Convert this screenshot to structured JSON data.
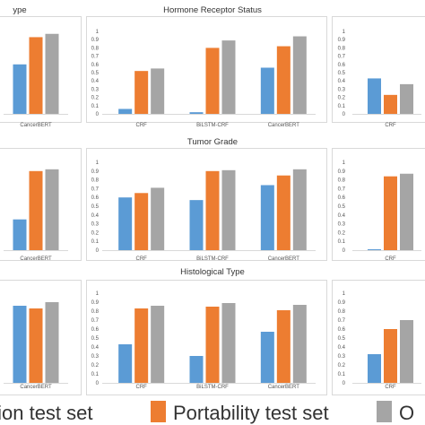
{
  "colors": {
    "series": [
      "#5b9bd5",
      "#ed7d31",
      "#a5a5a5"
    ],
    "frame": "#d9d9d9",
    "grid": "#d9d9d9"
  },
  "legend": {
    "entries": [
      {
        "label": "tion test set",
        "color": "#5b9bd5"
      },
      {
        "label": "Portability test set",
        "color": "#ed7d31"
      },
      {
        "label": "O",
        "color": "#a5a5a5"
      }
    ]
  },
  "chart_data": [
    {
      "type": "bar",
      "title": "ype",
      "categories": [
        "CancerBERT"
      ],
      "series": [
        {
          "values": [
            0.6
          ]
        },
        {
          "values": [
            0.93
          ]
        },
        {
          "values": [
            0.97
          ]
        }
      ]
    },
    {
      "type": "bar",
      "title": "Hormone Receptor Status",
      "categories": [
        "CRF",
        "BiLSTM-CRF",
        "CancerBERT"
      ],
      "ylim": [
        0,
        1
      ],
      "yticks": [
        "0",
        "0.1",
        "0.2",
        "0.3",
        "0.4",
        "0.5",
        "0.6",
        "0.7",
        "0.8",
        "0.9",
        "1"
      ],
      "series": [
        {
          "values": [
            0.06,
            0.02,
            0.56
          ]
        },
        {
          "values": [
            0.52,
            0.8,
            0.82
          ]
        },
        {
          "values": [
            0.55,
            0.89,
            0.94
          ]
        }
      ]
    },
    {
      "type": "bar",
      "title": "",
      "categories": [
        "CRF"
      ],
      "ylim": [
        0,
        1
      ],
      "yticks": [
        "0",
        "0.1",
        "0.2",
        "0.3",
        "0.4",
        "0.5",
        "0.6",
        "0.7",
        "0.8",
        "0.9",
        "1"
      ],
      "series": [
        {
          "values": [
            0.43
          ]
        },
        {
          "values": [
            0.23
          ]
        },
        {
          "values": [
            0.36
          ]
        }
      ]
    },
    {
      "type": "bar",
      "title": "",
      "categories": [
        "CancerBERT"
      ],
      "series": [
        {
          "values": [
            0.35
          ]
        },
        {
          "values": [
            0.9
          ]
        },
        {
          "values": [
            0.92
          ]
        }
      ]
    },
    {
      "type": "bar",
      "title": "Tumor Grade",
      "categories": [
        "CRF",
        "BiLSTM-CRF",
        "CancerBERT"
      ],
      "ylim": [
        0,
        1
      ],
      "yticks": [
        "0",
        "0.1",
        "0.2",
        "0.3",
        "0.4",
        "0.5",
        "0.6",
        "0.7",
        "0.8",
        "0.9",
        "1"
      ],
      "series": [
        {
          "values": [
            0.6,
            0.57,
            0.74
          ]
        },
        {
          "values": [
            0.65,
            0.9,
            0.85
          ]
        },
        {
          "values": [
            0.71,
            0.91,
            0.92
          ]
        }
      ]
    },
    {
      "type": "bar",
      "title": "",
      "categories": [
        "CRF"
      ],
      "ylim": [
        0,
        1
      ],
      "yticks": [
        "0",
        "0.1",
        "0.2",
        "0.3",
        "0.4",
        "0.5",
        "0.6",
        "0.7",
        "0.8",
        "0.9",
        "1"
      ],
      "series": [
        {
          "values": [
            0.01
          ]
        },
        {
          "values": [
            0.84
          ]
        },
        {
          "values": [
            0.87
          ]
        }
      ]
    },
    {
      "type": "bar",
      "title": "",
      "categories": [
        "CancerBERT"
      ],
      "series": [
        {
          "values": [
            0.86
          ]
        },
        {
          "values": [
            0.83
          ]
        },
        {
          "values": [
            0.9
          ]
        }
      ]
    },
    {
      "type": "bar",
      "title": "Histological  Type",
      "categories": [
        "CRF",
        "BiLSTM-CRF",
        "CancerBERT"
      ],
      "ylim": [
        0,
        1
      ],
      "yticks": [
        "0",
        "0.1",
        "0.2",
        "0.3",
        "0.4",
        "0.5",
        "0.6",
        "0.7",
        "0.8",
        "0.9",
        "1"
      ],
      "series": [
        {
          "values": [
            0.43,
            0.3,
            0.57
          ]
        },
        {
          "values": [
            0.83,
            0.85,
            0.81
          ]
        },
        {
          "values": [
            0.86,
            0.89,
            0.87
          ]
        }
      ]
    },
    {
      "type": "bar",
      "title": "",
      "categories": [
        "CRF"
      ],
      "ylim": [
        0,
        1
      ],
      "yticks": [
        "0",
        "0.1",
        "0.2",
        "0.3",
        "0.4",
        "0.5",
        "0.6",
        "0.7",
        "0.8",
        "0.9",
        "1"
      ],
      "series": [
        {
          "values": [
            0.32
          ]
        },
        {
          "values": [
            0.6
          ]
        },
        {
          "values": [
            0.7
          ]
        }
      ]
    }
  ]
}
